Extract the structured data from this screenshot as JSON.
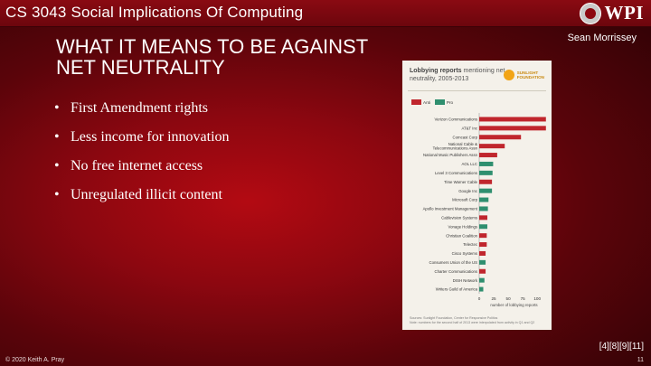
{
  "header": {
    "course_title": "CS 3043 Social Implications Of Computing",
    "logo_text": "WPI"
  },
  "author": "Sean Morrissey",
  "slide_title": "WHAT IT MEANS TO BE AGAINST NET NEUTRALITY",
  "bullets": [
    "First Amendment rights",
    "Less income for innovation",
    "No free internet access",
    "Unregulated illicit content"
  ],
  "figure": {
    "title_bold": "Lobbying reports",
    "title_rest": " mentioning net neutrality, 2005-2013",
    "brand": [
      "SUNLIGHT",
      "FOUNDATION"
    ],
    "source": "Sources: Sunlight Foundation, Center for Responsive Politics",
    "note": "Note: numbers for the second half of 2013 were interpolated from activity in Q1 and Q2"
  },
  "chart_data": {
    "type": "bar",
    "orientation": "horizontal",
    "categories": [
      "Verizon Communications",
      "AT&T Inc",
      "Comcast Corp",
      "National Cable & Telecommunications Assn",
      "National Music Publishers Assn",
      "AOL LLC",
      "Level 3 Communications",
      "Time Warner Cable",
      "Google Inc",
      "Microsoft Corp",
      "Apollo Investment Management",
      "Cablevision Systems",
      "Vonage Holdings",
      "Christian Coalition",
      "Telectec",
      "Cisco Systems",
      "Consumers Union of the US",
      "Charter Communications",
      "DISH Network",
      "Writers Guild of America"
    ],
    "values": [
      115,
      115,
      72,
      44,
      31,
      24,
      23,
      22,
      22,
      16,
      15,
      14,
      14,
      13,
      13,
      11,
      11,
      11,
      9,
      7
    ],
    "stance": [
      "Anti",
      "Anti",
      "Anti",
      "Anti",
      "Anti",
      "Pro",
      "Pro",
      "Anti",
      "Pro",
      "Pro",
      "Pro",
      "Anti",
      "Pro",
      "Anti",
      "Anti",
      "Anti",
      "Pro",
      "Anti",
      "Pro",
      "Pro"
    ],
    "legend": [
      "Anti",
      "Pro"
    ],
    "colors": {
      "Anti": "#c0262d",
      "Pro": "#2f8f6f"
    },
    "xticks": [
      0,
      25,
      50,
      75,
      100
    ],
    "xlabel": "number of lobbying reports",
    "xlim": [
      0,
      120
    ]
  },
  "references": "[4][8][9][11]",
  "footer": {
    "copyright": "© 2020 Keith A. Pray",
    "page_number": "11"
  }
}
